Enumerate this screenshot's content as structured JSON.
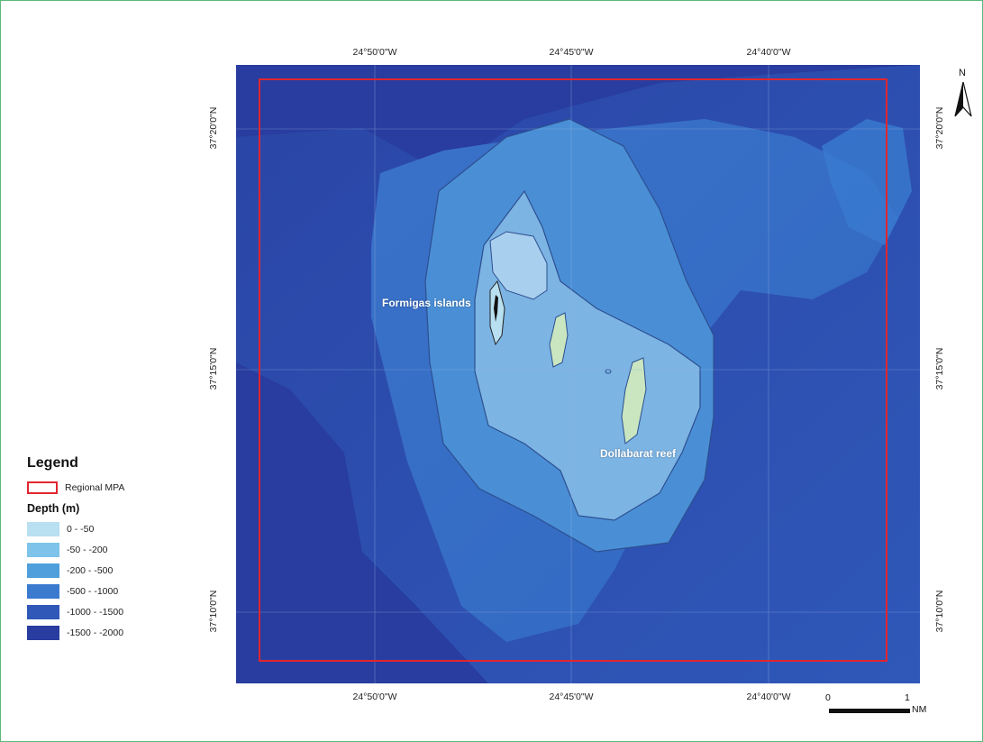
{
  "map": {
    "top_ticks": [
      "24°50'0\"W",
      "24°45'0\"W",
      "24°40'0\"W"
    ],
    "bottom_ticks": [
      "24°50'0\"W",
      "24°45'0\"W",
      "24°40'0\"W"
    ],
    "left_ticks": [
      "37°20'0\"N",
      "37°15'0\"N",
      "37°10'0\"N"
    ],
    "right_ticks": [
      "37°20'0\"N",
      "37°15'0\"N",
      "37°10'0\"N"
    ],
    "labels": {
      "formigas": "Formigas islands",
      "dollabarat": "Dollabarat reef"
    },
    "mpa_color": "#e0262f"
  },
  "north_arrow": {
    "letter": "N",
    "icon": "north-arrow-icon"
  },
  "scale_bar": {
    "start": "0",
    "end": "1",
    "unit": "NM"
  },
  "legend": {
    "title": "Legend",
    "mpa_label": "Regional MPA",
    "depth_title": "Depth (m)",
    "depth_classes": [
      {
        "label": "0 - -50",
        "color": "#b8e0f0"
      },
      {
        "label": "-50 - -200",
        "color": "#7dc3ea"
      },
      {
        "label": "-200 - -500",
        "color": "#4e9fdc"
      },
      {
        "label": "-500 - -1000",
        "color": "#3a7bcf"
      },
      {
        "label": "-1000 - -1500",
        "color": "#2f58b9"
      },
      {
        "label": "-1500 - -2000",
        "color": "#283d9f"
      }
    ]
  }
}
